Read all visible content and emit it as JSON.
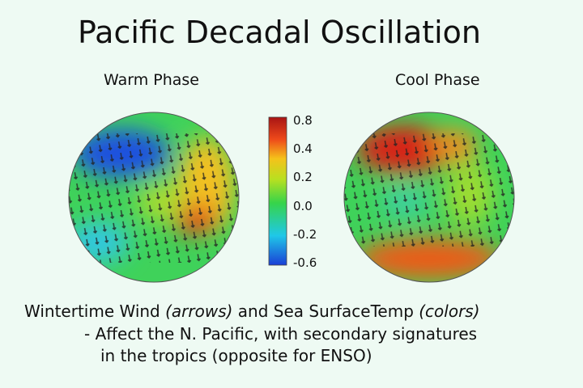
{
  "title": "Pacific Decadal Oscillation",
  "panels": [
    {
      "label": "Warm Phase"
    },
    {
      "label": "Cool Phase"
    }
  ],
  "colorbar": {
    "ticks": [
      "0.8",
      "0.4",
      "0.2",
      "0.0",
      "-0.2",
      "-0.6"
    ]
  },
  "caption": {
    "line1": [
      "Wintertime Wind",
      "(arrows)",
      "and Sea SurfaceTemp",
      "(colors)"
    ],
    "line2": "- Affect the N. Pacific, with secondary signatures",
    "line3": "in the tropics (opposite for ENSO)"
  }
}
